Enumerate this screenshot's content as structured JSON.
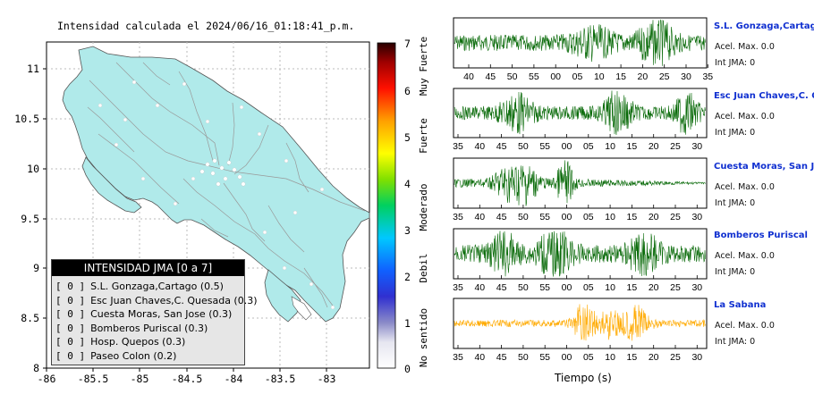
{
  "map": {
    "title": "Intensidad calculada el 2024/06/16_01:18:41_p.m.",
    "x_ticks": [
      "-86",
      "-85.5",
      "-85",
      "-84.5",
      "-84",
      "-83.5",
      "-83"
    ],
    "y_ticks": [
      "11",
      "10.5",
      "10",
      "9.5",
      "9",
      "8.5",
      "8"
    ],
    "land_color": "#b0eaea",
    "ocean_color": "#ffffff"
  },
  "colorbar": {
    "ticks": [
      "7",
      "6",
      "5",
      "4",
      "3",
      "2",
      "1",
      "0"
    ],
    "class_labels": [
      "Muy Fuerte",
      "Fuerte",
      "Moderado",
      "Debil",
      "No sentido"
    ]
  },
  "legend": {
    "header": "INTENSIDAD JMA [0 a 7]",
    "items": [
      {
        "bracket": "[ 0 ]",
        "label": "S.L. Gonzaga,Cartago (0.5)"
      },
      {
        "bracket": "[ 0 ]",
        "label": "Esc Juan Chaves,C. Quesada (0.3)"
      },
      {
        "bracket": "[ 0 ]",
        "label": "Cuesta Moras, San Jose (0.3)"
      },
      {
        "bracket": "[ 0 ]",
        "label": "Bomberos Puriscal (0.3)"
      },
      {
        "bracket": "[ 0 ]",
        "label": "Hosp. Quepos (0.3)"
      },
      {
        "bracket": "[ 0 ]",
        "label": "Paseo Colon (0.2)"
      }
    ]
  },
  "traces": [
    {
      "name": "S.L. Gonzaga,Cartago",
      "accel": "Acel. Max. 0.0",
      "jma": "Int JMA: 0",
      "color": "#0a6b0a",
      "ticks": [
        "40",
        "45",
        "50",
        "55",
        "00",
        "05",
        "10",
        "15",
        "20",
        "25",
        "30",
        "35"
      ]
    },
    {
      "name": "Esc Juan Chaves,C. Quesada",
      "accel": "Acel. Max. 0.0",
      "jma": "Int JMA: 0",
      "color": "#0a6b0a",
      "ticks": [
        "35",
        "40",
        "45",
        "50",
        "55",
        "00",
        "05",
        "10",
        "15",
        "20",
        "25",
        "30"
      ]
    },
    {
      "name": "Cuesta Moras, San Jose",
      "accel": "Acel. Max. 0.0",
      "jma": "Int JMA: 0",
      "color": "#0a6b0a",
      "ticks": [
        "35",
        "40",
        "45",
        "50",
        "55",
        "00",
        "05",
        "10",
        "15",
        "20",
        "25",
        "30"
      ]
    },
    {
      "name": "Bomberos Puriscal",
      "accel": "Acel. Max. 0.0",
      "jma": "Int JMA: 0",
      "color": "#0a6b0a",
      "ticks": [
        "35",
        "40",
        "45",
        "50",
        "55",
        "00",
        "05",
        "10",
        "15",
        "20",
        "25",
        "30"
      ]
    },
    {
      "name": "La Sabana",
      "accel": "Acel. Max. 0.0",
      "jma": "Int JMA: 0",
      "color": "#ffaa00",
      "ticks": [
        "35",
        "40",
        "45",
        "50",
        "55",
        "00",
        "05",
        "10",
        "15",
        "20",
        "25",
        "30"
      ]
    }
  ],
  "xlabel": "Tiempo (s)"
}
